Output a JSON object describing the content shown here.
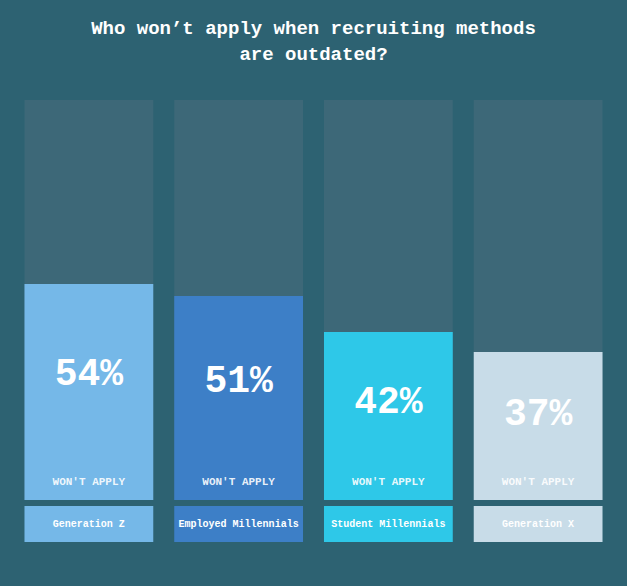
{
  "chart_data": {
    "type": "bar",
    "title": "Who won’t apply when recruiting methods\nare outdated?",
    "categories": [
      "Generation Z",
      "Employed Millennials",
      "Student Millennials",
      "Generation X"
    ],
    "values": [
      54,
      51,
      42,
      37
    ],
    "value_labels": [
      "54%",
      "51%",
      "42%",
      "37%"
    ],
    "colors": [
      "#75b8e8",
      "#3d7fc7",
      "#2ec8e8",
      "#c8dce8"
    ],
    "annotations": [
      "WON'T APPLY"
    ],
    "ylim": [
      0,
      100
    ],
    "data_labels": true,
    "tick_labels": false,
    "grid": false
  }
}
